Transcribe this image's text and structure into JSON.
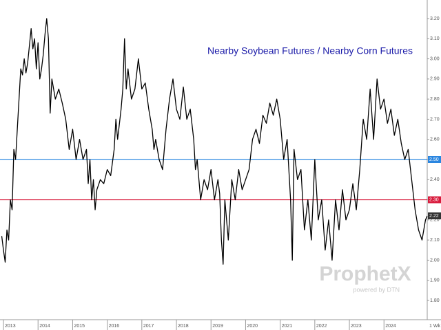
{
  "chart_data": {
    "type": "line",
    "title": "Nearby Soybean Futures / Nearby Corn Futures",
    "watermark": "ProphetX",
    "watermark_sub": "powered by DTN",
    "corner_label": "1 Wk",
    "color": "#000000",
    "x": [
      2012.95,
      2013.0,
      2013.05,
      2013.1,
      2013.15,
      2013.2,
      2013.25,
      2013.3,
      2013.35,
      2013.4,
      2013.45,
      2013.5,
      2013.55,
      2013.6,
      2013.65,
      2013.7,
      2013.8,
      2013.85,
      2013.9,
      2013.95,
      2014.0,
      2014.05,
      2014.1,
      2014.15,
      2014.2,
      2014.25,
      2014.3,
      2014.35,
      2014.4,
      2014.5,
      2014.6,
      2014.7,
      2014.8,
      2014.9,
      2015.0,
      2015.1,
      2015.2,
      2015.3,
      2015.4,
      2015.45,
      2015.5,
      2015.55,
      2015.6,
      2015.65,
      2015.7,
      2015.8,
      2015.9,
      2016.0,
      2016.1,
      2016.2,
      2016.25,
      2016.3,
      2016.4,
      2016.45,
      2016.5,
      2016.55,
      2016.6,
      2016.7,
      2016.8,
      2016.9,
      2017.0,
      2017.1,
      2017.2,
      2017.3,
      2017.35,
      2017.4,
      2017.5,
      2017.6,
      2017.7,
      2017.8,
      2017.9,
      2018.0,
      2018.1,
      2018.2,
      2018.3,
      2018.4,
      2018.5,
      2018.55,
      2018.6,
      2018.7,
      2018.8,
      2018.9,
      2019.0,
      2019.1,
      2019.2,
      2019.25,
      2019.3,
      2019.35,
      2019.4,
      2019.5,
      2019.6,
      2019.7,
      2019.8,
      2019.9,
      2020.0,
      2020.1,
      2020.2,
      2020.3,
      2020.4,
      2020.5,
      2020.6,
      2020.7,
      2020.8,
      2020.9,
      2021.0,
      2021.1,
      2021.2,
      2021.3,
      2021.35,
      2021.4,
      2021.5,
      2021.6,
      2021.7,
      2021.8,
      2021.9,
      2022.0,
      2022.1,
      2022.2,
      2022.3,
      2022.4,
      2022.5,
      2022.6,
      2022.7,
      2022.8,
      2022.9,
      2023.0,
      2023.1,
      2023.2,
      2023.3,
      2023.4,
      2023.5,
      2023.6,
      2023.7,
      2023.8,
      2023.9,
      2024.0,
      2024.1,
      2024.2,
      2024.3,
      2024.4,
      2024.5,
      2024.6,
      2024.7,
      2024.8,
      2024.9,
      2025.0,
      2025.1,
      2025.2,
      2025.25
    ],
    "values": [
      2.12,
      2.05,
      1.99,
      2.15,
      2.1,
      2.3,
      2.25,
      2.55,
      2.5,
      2.65,
      2.8,
      2.95,
      2.92,
      3.0,
      2.93,
      2.98,
      3.15,
      3.05,
      3.1,
      2.95,
      3.08,
      2.9,
      2.95,
      3.02,
      3.12,
      3.2,
      3.1,
      2.73,
      2.9,
      2.8,
      2.85,
      2.78,
      2.7,
      2.55,
      2.65,
      2.5,
      2.6,
      2.5,
      2.55,
      2.38,
      2.5,
      2.3,
      2.4,
      2.25,
      2.35,
      2.4,
      2.38,
      2.45,
      2.42,
      2.55,
      2.7,
      2.6,
      2.75,
      2.85,
      3.1,
      2.85,
      2.95,
      2.8,
      2.85,
      3.0,
      2.85,
      2.88,
      2.75,
      2.65,
      2.55,
      2.6,
      2.5,
      2.45,
      2.65,
      2.8,
      2.9,
      2.75,
      2.7,
      2.86,
      2.7,
      2.75,
      2.6,
      2.45,
      2.5,
      2.3,
      2.4,
      2.35,
      2.45,
      2.3,
      2.4,
      2.33,
      2.1,
      1.98,
      2.3,
      2.1,
      2.4,
      2.3,
      2.45,
      2.35,
      2.4,
      2.45,
      2.6,
      2.65,
      2.58,
      2.72,
      2.68,
      2.78,
      2.72,
      2.8,
      2.7,
      2.5,
      2.6,
      2.3,
      2.0,
      2.55,
      2.4,
      2.45,
      2.15,
      2.3,
      2.1,
      2.5,
      2.2,
      2.3,
      2.05,
      2.2,
      2.0,
      2.3,
      2.15,
      2.35,
      2.2,
      2.25,
      2.38,
      2.25,
      2.45,
      2.7,
      2.6,
      2.85,
      2.6,
      2.9,
      2.75,
      2.8,
      2.68,
      2.75,
      2.62,
      2.7,
      2.58,
      2.5,
      2.55,
      2.4,
      2.25,
      2.15,
      2.1,
      2.2,
      2.22
    ],
    "last_value": {
      "value": 2.22,
      "label": "2.22"
    },
    "reference_lines": [
      {
        "value": 2.5,
        "label": "2.50",
        "color": "#2a86e0"
      },
      {
        "value": 2.3,
        "label": "2.30",
        "color": "#d81b3c"
      }
    ],
    "xlim": [
      2012.9,
      2025.25
    ],
    "xticks": [
      2013,
      2014,
      2015,
      2016,
      2017,
      2018,
      2019,
      2020,
      2021,
      2022,
      2023,
      2024
    ],
    "ylim": [
      1.75,
      3.25
    ],
    "yticks": [
      {
        "value": 1.8,
        "label": "1.80"
      },
      {
        "value": 1.9,
        "label": "1.90"
      },
      {
        "value": 2.0,
        "label": "2.00"
      },
      {
        "value": 2.1,
        "label": "2.10"
      },
      {
        "value": 2.2,
        "label": "2.20"
      },
      {
        "value": 2.3,
        "label": "2.30"
      },
      {
        "value": 2.4,
        "label": "2.40"
      },
      {
        "value": 2.5,
        "label": "2.50"
      },
      {
        "value": 2.6,
        "label": "2.60"
      },
      {
        "value": 2.7,
        "label": "2.70"
      },
      {
        "value": 2.8,
        "label": "2.80"
      },
      {
        "value": 2.9,
        "label": "2.90"
      },
      {
        "value": 3.0,
        "label": "3.00"
      },
      {
        "value": 3.1,
        "label": "3.10"
      },
      {
        "value": 3.2,
        "label": "3.20"
      }
    ]
  }
}
